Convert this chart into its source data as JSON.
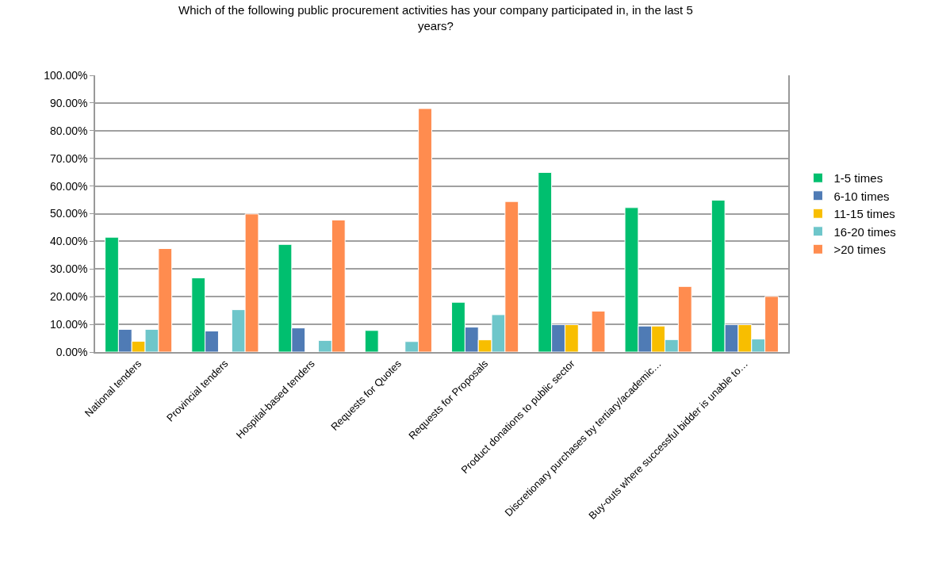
{
  "chart_data": {
    "type": "bar",
    "title": "Which of the following public procurement activities has your company participated in, in the last 5 years?",
    "categories": [
      "National tenders",
      "Provincial tenders",
      "Hospital-based tenders",
      "Requests for Quotes",
      "Requests for Proposals",
      "Product donations to public sector",
      "Discretionary purchases by tertiary/academic…",
      "Buy-outs where successful bidder is unable to…"
    ],
    "series": [
      {
        "name": "1-5 times",
        "color": "#00bf6f",
        "values": [
          41.5,
          26.8,
          38.9,
          7.8,
          18.0,
          64.9,
          52.2,
          54.9
        ]
      },
      {
        "name": "6-10 times",
        "color": "#4f7bb5",
        "values": [
          8.2,
          7.6,
          8.7,
          null,
          9.0,
          9.9,
          9.4,
          9.9
        ]
      },
      {
        "name": "11-15 times",
        "color": "#f8be00",
        "values": [
          3.9,
          null,
          null,
          null,
          4.4,
          9.9,
          9.4,
          9.9
        ]
      },
      {
        "name": "16-20 times",
        "color": "#6ec6ca",
        "values": [
          8.2,
          15.3,
          4.2,
          3.8,
          13.5,
          null,
          4.5,
          4.7
        ]
      },
      {
        "name": ">20 times",
        "color": "#ff8c4f",
        "values": [
          37.4,
          49.9,
          47.7,
          88.0,
          54.4,
          14.8,
          23.7,
          20.1
        ]
      }
    ],
    "ylim": [
      0,
      100
    ],
    "yticks": [
      {
        "value": 0,
        "label": "0.00%"
      },
      {
        "value": 10,
        "label": "10.00%"
      },
      {
        "value": 20,
        "label": "20.00%"
      },
      {
        "value": 30,
        "label": "30.00%"
      },
      {
        "value": 40,
        "label": "40.00%"
      },
      {
        "value": 50,
        "label": "50.00%"
      },
      {
        "value": 60,
        "label": "60.00%"
      },
      {
        "value": 70,
        "label": "70.00%"
      },
      {
        "value": 80,
        "label": "80.00%"
      },
      {
        "value": 90,
        "label": "90.00%"
      },
      {
        "value": 100,
        "label": "100.00%"
      }
    ],
    "grid": "y",
    "legend": "right"
  }
}
